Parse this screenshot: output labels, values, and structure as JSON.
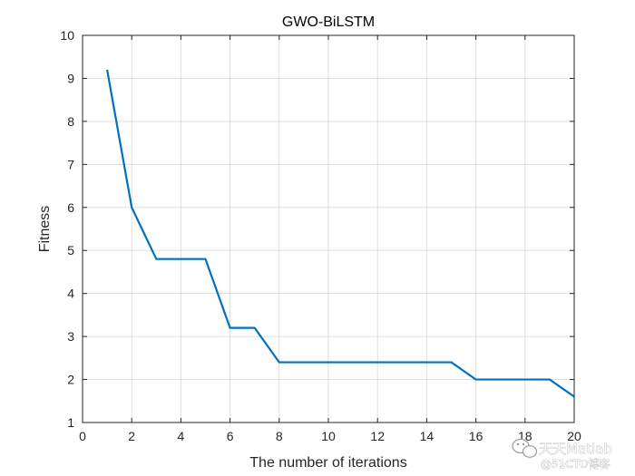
{
  "chart_data": {
    "type": "line",
    "title": "GWO-BiLSTM",
    "xlabel": "The number of iterations",
    "ylabel": "Fitness",
    "xlim": [
      0,
      20
    ],
    "ylim": [
      1,
      10
    ],
    "xticks": [
      0,
      2,
      4,
      6,
      8,
      10,
      12,
      14,
      16,
      18,
      20
    ],
    "yticks": [
      1,
      2,
      3,
      4,
      5,
      6,
      7,
      8,
      9,
      10
    ],
    "grid": true,
    "legend": "none",
    "line_color": "#0072BD",
    "series": [
      {
        "x": [
          1,
          2,
          3,
          4,
          5,
          6,
          7,
          8,
          9,
          10,
          11,
          12,
          13,
          14,
          15,
          16,
          17,
          18,
          19,
          20
        ],
        "y": [
          9.2,
          6.0,
          4.8,
          4.8,
          4.8,
          3.2,
          3.2,
          2.4,
          2.4,
          2.4,
          2.4,
          2.4,
          2.4,
          2.4,
          2.4,
          2.0,
          2.0,
          2.0,
          2.0,
          1.6
        ]
      }
    ]
  },
  "watermark": {
    "line1": "天天Matlab",
    "line2": "@51CTO博客",
    "icon": "wechat-bubble-icon"
  }
}
